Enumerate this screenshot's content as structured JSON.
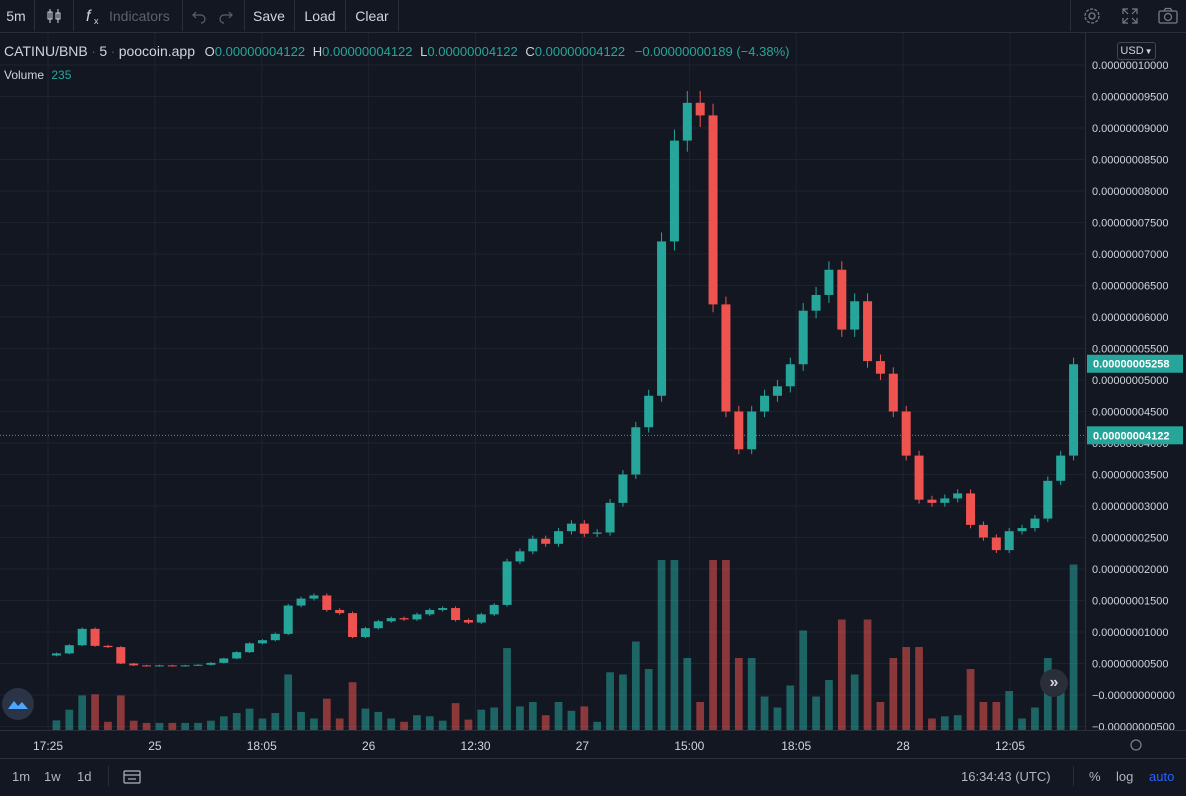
{
  "toolbar": {
    "interval": "5m",
    "indicators_label": "Indicators",
    "save_label": "Save",
    "load_label": "Load",
    "clear_label": "Clear"
  },
  "legend": {
    "symbol": "CATINU/BNB",
    "interval": "5",
    "source": "poocoin.app",
    "o_label": "O",
    "o_value": "0.00000004122",
    "h_label": "H",
    "h_value": "0.00000004122",
    "l_label": "L",
    "l_value": "0.00000004122",
    "c_label": "C",
    "c_value": "0.00000004122",
    "change": "−0.00000000189 (−4.38%)",
    "volume_label": "Volume",
    "volume_value": "235"
  },
  "currency": "USD",
  "colors": {
    "up": "#26a69a",
    "down": "#ef5350",
    "background": "#131722",
    "grid": "#1f2330",
    "axis_text": "#d1d4dc"
  },
  "price_axis": {
    "ticks": [
      "0.00000010000",
      "0.00000009500",
      "0.00000009000",
      "0.00000008500",
      "0.00000008000",
      "0.00000007500",
      "0.00000007000",
      "0.00000006500",
      "0.00000006000",
      "0.00000005500",
      "0.00000005000",
      "0.00000004500",
      "0.00000004000",
      "0.00000003500",
      "0.00000003000",
      "0.00000002500",
      "0.00000002000",
      "0.00000001500",
      "0.00000001000",
      "0.00000000500",
      "−0.00000000000",
      "−0.00000000500"
    ],
    "current_price": "0.00000005258",
    "crosshair_price": "0.00000004122"
  },
  "time_axis": {
    "labels": [
      "17:25",
      "25",
      "18:05",
      "26",
      "12:30",
      "27",
      "15:00",
      "18:05",
      "28",
      "12:05"
    ]
  },
  "bottom": {
    "ranges": [
      "1m",
      "1w",
      "1d"
    ],
    "clock": "16:34:43 (UTC)",
    "percent": "%",
    "log": "log",
    "auto": "auto"
  },
  "icons": [
    "candles-icon",
    "indicators-icon",
    "undo-icon",
    "redo-icon",
    "settings-icon",
    "fullscreen-icon",
    "camera-icon",
    "gear-icon",
    "date-range-icon",
    "scroll-right-icon",
    "logo-icon"
  ],
  "chart_data": {
    "type": "candlestick",
    "price_range": [
      -5e-09,
      1e-07
    ],
    "x_labels": [
      "17:25",
      "25",
      "18:05",
      "26",
      "12:30",
      "27",
      "15:00",
      "18:05",
      "28",
      "12:05"
    ],
    "close_series": [
      6.6e-09,
      7.9e-09,
      1.05e-08,
      7.8e-09,
      7.6e-09,
      5e-09,
      4.7e-09,
      4.6e-09,
      4.7e-09,
      4.6e-09,
      4.7e-09,
      4.8e-09,
      5.1e-09,
      5.8e-09,
      6.8e-09,
      8.2e-09,
      8.7e-09,
      9.7e-09,
      1.42e-08,
      1.53e-08,
      1.58e-08,
      1.35e-08,
      1.3e-08,
      9.2e-09,
      1.06e-08,
      1.17e-08,
      1.22e-08,
      1.2e-08,
      1.28e-08,
      1.35e-08,
      1.38e-08,
      1.19e-08,
      1.15e-08,
      1.28e-08,
      1.43e-08,
      2.12e-08,
      2.28e-08,
      2.48e-08,
      2.4e-08,
      2.6e-08,
      2.72e-08,
      2.56e-08,
      2.58e-08,
      3.05e-08,
      3.5e-08,
      4.25e-08,
      4.75e-08,
      7.2e-08,
      8.8e-08,
      9.4e-08,
      9.2e-08,
      6.2e-08,
      4.5e-08,
      3.9e-08,
      4.5e-08,
      4.75e-08,
      4.9e-08,
      5.25e-08,
      6.1e-08,
      6.35e-08,
      6.75e-08,
      5.8e-08,
      6.25e-08,
      5.3e-08,
      5.1e-08,
      4.5e-08,
      3.8e-08,
      3.1e-08,
      3.05e-08,
      3.12e-08,
      3.2e-08,
      2.7e-08,
      2.5e-08,
      2.3e-08,
      2.6e-08,
      2.65e-08,
      2.8e-08,
      3.4e-08,
      3.8e-08,
      5.25e-08
    ]
  }
}
